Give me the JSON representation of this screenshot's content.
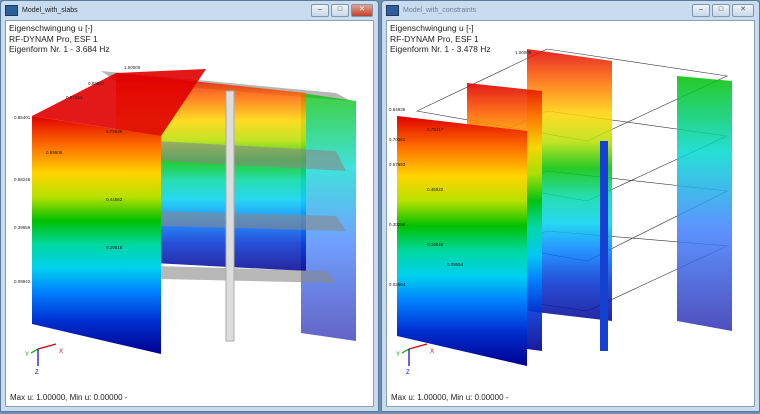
{
  "windows": [
    {
      "title": "Model_with_slabs",
      "active": true,
      "info": [
        "Eigenschwingung u [-]",
        "RF-DYNAM Pro, ESF 1",
        "Eigenform Nr. 1 - 3.684 Hz"
      ],
      "status": "Max u: 1.00000, Min u: 0.00000 -",
      "labels": [
        "1.00000",
        "0.89657",
        "0.87424",
        "0.85401",
        "0.75636",
        "0.69505",
        "0.58246",
        "0.44562",
        "0.39559",
        "0.29016",
        "0.09942"
      ]
    },
    {
      "title": "Model_with_constraints",
      "active": false,
      "info": [
        "Eigenschwingung u [-]",
        "RF-DYNAM Pro, ESF 1",
        "Eigenform Nr. 1 - 3.478 Hz"
      ],
      "status": "Max u: 1.00000, Min u: 0.00000 -",
      "labels": [
        "1.00000",
        "0.84936",
        "0.78417",
        "0.70361",
        "0.57893",
        "0.46022",
        "0.30294",
        "0.19046",
        "0.09554",
        "0.02564"
      ]
    }
  ],
  "axes": {
    "x": "X",
    "y": "Y",
    "z": "Z"
  },
  "controls": {
    "minimize": "–",
    "maximize": "□",
    "close": "✕"
  },
  "colors": {
    "max": "#e00000",
    "mid": "#00c000",
    "min": "#000090"
  }
}
